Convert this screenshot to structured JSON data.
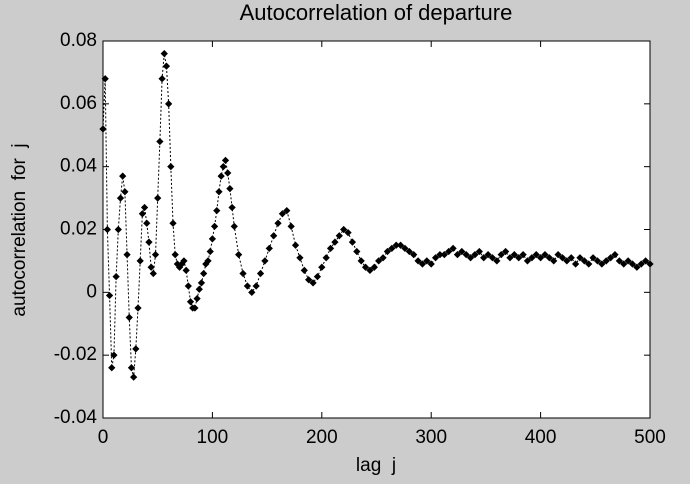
{
  "chart_data": {
    "type": "line",
    "title": "Autocorrelation of departure",
    "xlabel": "lag  j",
    "ylabel": "autocorrelation  for  j",
    "color": "#000000",
    "marker": "diamond",
    "line_style": "dotted",
    "x": [
      0,
      2,
      4,
      6,
      8,
      10,
      12,
      14,
      16,
      18,
      20,
      22,
      24,
      26,
      28,
      30,
      32,
      34,
      36,
      38,
      40,
      42,
      44,
      46,
      48,
      50,
      52,
      54,
      56,
      58,
      60,
      62,
      64,
      66,
      68,
      70,
      72,
      74,
      76,
      78,
      80,
      82,
      84,
      86,
      88,
      90,
      92,
      94,
      96,
      98,
      100,
      102,
      104,
      106,
      108,
      110,
      112,
      114,
      116,
      118,
      120,
      124,
      128,
      132,
      136,
      140,
      144,
      148,
      152,
      156,
      160,
      164,
      168,
      172,
      176,
      180,
      184,
      188,
      192,
      196,
      200,
      204,
      208,
      212,
      216,
      220,
      224,
      228,
      232,
      236,
      240,
      244,
      248,
      252,
      256,
      260,
      264,
      268,
      272,
      276,
      280,
      284,
      288,
      292,
      296,
      300,
      304,
      308,
      312,
      316,
      320,
      324,
      328,
      332,
      336,
      340,
      344,
      348,
      352,
      356,
      360,
      364,
      368,
      372,
      376,
      380,
      384,
      388,
      392,
      396,
      400,
      404,
      408,
      412,
      416,
      420,
      424,
      428,
      432,
      436,
      440,
      444,
      448,
      452,
      456,
      460,
      464,
      468,
      472,
      476,
      480,
      484,
      488,
      492,
      496,
      500
    ],
    "values": [
      0.052,
      0.068,
      0.02,
      -0.001,
      -0.024,
      -0.02,
      0.005,
      0.02,
      0.03,
      0.037,
      0.032,
      0.012,
      -0.008,
      -0.024,
      -0.027,
      -0.018,
      -0.005,
      0.01,
      0.025,
      0.027,
      0.022,
      0.016,
      0.008,
      0.006,
      0.012,
      0.03,
      0.048,
      0.068,
      0.076,
      0.072,
      0.06,
      0.04,
      0.022,
      0.012,
      0.009,
      0.008,
      0.009,
      0.01,
      0.007,
      0.002,
      -0.003,
      -0.005,
      -0.005,
      -0.002,
      0.001,
      0.003,
      0.006,
      0.009,
      0.01,
      0.013,
      0.017,
      0.021,
      0.026,
      0.032,
      0.037,
      0.04,
      0.042,
      0.038,
      0.033,
      0.027,
      0.021,
      0.012,
      0.006,
      0.002,
      0.0,
      0.002,
      0.006,
      0.01,
      0.014,
      0.018,
      0.022,
      0.025,
      0.026,
      0.021,
      0.015,
      0.011,
      0.007,
      0.004,
      0.003,
      0.005,
      0.008,
      0.011,
      0.014,
      0.016,
      0.018,
      0.02,
      0.019,
      0.016,
      0.013,
      0.01,
      0.008,
      0.007,
      0.008,
      0.01,
      0.011,
      0.013,
      0.014,
      0.015,
      0.015,
      0.014,
      0.013,
      0.012,
      0.01,
      0.009,
      0.01,
      0.009,
      0.011,
      0.012,
      0.012,
      0.013,
      0.014,
      0.012,
      0.013,
      0.012,
      0.011,
      0.012,
      0.013,
      0.011,
      0.012,
      0.011,
      0.01,
      0.012,
      0.013,
      0.011,
      0.012,
      0.011,
      0.012,
      0.01,
      0.011,
      0.012,
      0.011,
      0.012,
      0.011,
      0.01,
      0.012,
      0.011,
      0.01,
      0.011,
      0.009,
      0.011,
      0.01,
      0.009,
      0.011,
      0.01,
      0.009,
      0.01,
      0.011,
      0.012,
      0.01,
      0.009,
      0.01,
      0.009,
      0.008,
      0.009,
      0.01,
      0.009
    ],
    "xlim": [
      0,
      500
    ],
    "xticks": [
      0,
      100,
      200,
      300,
      400,
      500
    ],
    "ylim": [
      -0.04,
      0.08
    ],
    "yticks": [
      -0.04,
      -0.02,
      0,
      0.02,
      0.04,
      0.06,
      0.08
    ]
  }
}
